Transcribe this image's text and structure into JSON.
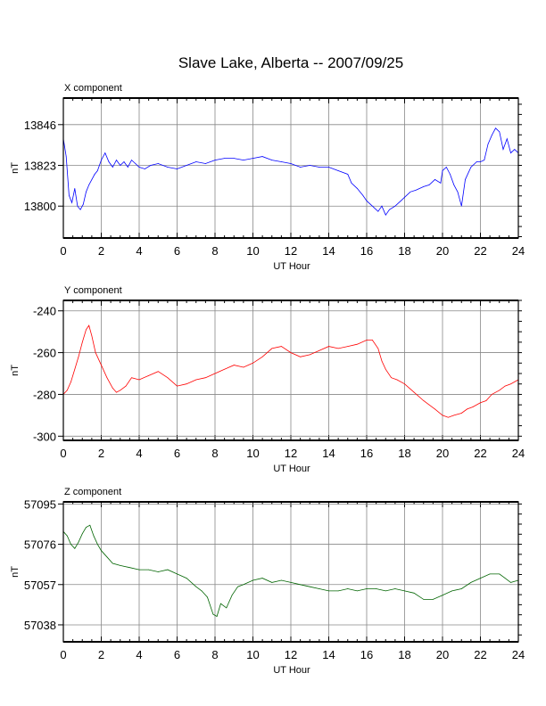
{
  "title": "Slave Lake, Alberta -- 2007/09/25",
  "chart_data": [
    {
      "type": "line",
      "title": "X component",
      "xlabel": "UT Hour",
      "ylabel": "nT",
      "xlim": [
        0,
        24
      ],
      "ylim": [
        13782,
        13861
      ],
      "xticks": [
        "0",
        "2",
        "4",
        "6",
        "8",
        "10",
        "12",
        "14",
        "16",
        "18",
        "20",
        "22",
        "24"
      ],
      "yticks": [
        "13800",
        "13823",
        "13846"
      ],
      "grid": true,
      "series": [
        {
          "color": "#0000ff",
          "x": [
            0,
            0.15,
            0.3,
            0.45,
            0.6,
            0.75,
            0.9,
            1.05,
            1.2,
            1.35,
            1.5,
            1.65,
            1.8,
            2,
            2.2,
            2.4,
            2.6,
            2.8,
            3,
            3.2,
            3.4,
            3.6,
            3.8,
            4,
            4.3,
            4.6,
            5,
            5.5,
            6,
            6.5,
            7,
            7.5,
            8,
            8.5,
            9,
            9.5,
            10,
            10.5,
            11,
            11.5,
            12,
            12.5,
            13,
            13.5,
            14,
            14.5,
            15,
            15.2,
            15.5,
            15.8,
            16,
            16.3,
            16.6,
            16.8,
            17,
            17.2,
            17.5,
            17.8,
            18,
            18.3,
            18.6,
            19,
            19.3,
            19.6,
            19.9,
            20,
            20.2,
            20.4,
            20.6,
            20.8,
            21,
            21.2,
            21.5,
            21.8,
            22,
            22.2,
            22.4,
            22.6,
            22.8,
            23,
            23.2,
            23.4,
            23.6,
            23.8,
            24
          ],
          "y": [
            13838,
            13828,
            13806,
            13802,
            13810,
            13800,
            13798,
            13801,
            13808,
            13812,
            13815,
            13818,
            13820,
            13826,
            13830,
            13825,
            13822,
            13826,
            13823,
            13825,
            13822,
            13826,
            13824,
            13822,
            13821,
            13823,
            13824,
            13822,
            13821,
            13823,
            13825,
            13824,
            13826,
            13827,
            13827,
            13826,
            13827,
            13828,
            13826,
            13825,
            13824,
            13822,
            13823,
            13822,
            13822,
            13820,
            13818,
            13813,
            13810,
            13806,
            13803,
            13800,
            13797,
            13800,
            13795,
            13798,
            13800,
            13803,
            13805,
            13808,
            13809,
            13811,
            13812,
            13815,
            13813,
            13820,
            13822,
            13818,
            13812,
            13808,
            13800,
            13815,
            13822,
            13825,
            13825,
            13826,
            13835,
            13840,
            13844,
            13842,
            13832,
            13838,
            13830,
            13832,
            13830
          ]
        }
      ]
    },
    {
      "type": "line",
      "title": "Y component",
      "xlabel": "UT Hour",
      "ylabel": "nT",
      "xlim": [
        0,
        24
      ],
      "ylim": [
        -302,
        -235
      ],
      "xticks": [
        "0",
        "2",
        "4",
        "6",
        "8",
        "10",
        "12",
        "14",
        "16",
        "18",
        "20",
        "22",
        "24"
      ],
      "yticks": [
        "-240",
        "-260",
        "-280",
        "-300"
      ],
      "grid": true,
      "series": [
        {
          "color": "#ff0000",
          "x": [
            0,
            0.2,
            0.4,
            0.6,
            0.8,
            1,
            1.2,
            1.35,
            1.5,
            1.7,
            2,
            2.3,
            2.6,
            2.8,
            3,
            3.3,
            3.6,
            4,
            4.5,
            5,
            5.5,
            6,
            6.5,
            7,
            7.5,
            8,
            8.5,
            9,
            9.5,
            10,
            10.5,
            11,
            11.5,
            12,
            12.5,
            13,
            13.5,
            14,
            14.5,
            15,
            15.5,
            16,
            16.3,
            16.6,
            16.8,
            17,
            17.3,
            17.6,
            18,
            18.5,
            19,
            19.3,
            19.6,
            20,
            20.3,
            20.6,
            21,
            21.3,
            21.6,
            22,
            22.3,
            22.6,
            23,
            23.3,
            23.6,
            24
          ],
          "y": [
            -280,
            -278,
            -274,
            -268,
            -262,
            -255,
            -249,
            -247,
            -252,
            -260,
            -266,
            -272,
            -277,
            -279,
            -278,
            -276,
            -272,
            -273,
            -271,
            -269,
            -272,
            -276,
            -275,
            -273,
            -272,
            -270,
            -268,
            -266,
            -267,
            -265,
            -262,
            -258,
            -257,
            -260,
            -262,
            -261,
            -259,
            -257,
            -258,
            -257,
            -256,
            -254,
            -254,
            -258,
            -264,
            -268,
            -272,
            -273,
            -275,
            -279,
            -283,
            -285,
            -287,
            -290,
            -291,
            -290,
            -289,
            -287,
            -286,
            -284,
            -283,
            -280,
            -278,
            -276,
            -275,
            -273
          ]
        }
      ]
    },
    {
      "type": "line",
      "title": "Z component",
      "xlabel": "UT Hour",
      "ylabel": "nT",
      "xlim": [
        0,
        24
      ],
      "ylim": [
        57030,
        57096
      ],
      "xticks": [
        "0",
        "2",
        "4",
        "6",
        "8",
        "10",
        "12",
        "14",
        "16",
        "18",
        "20",
        "22",
        "24"
      ],
      "yticks": [
        "57038",
        "57057",
        "57076",
        "57095"
      ],
      "grid": true,
      "series": [
        {
          "color": "#006400",
          "x": [
            0,
            0.2,
            0.4,
            0.6,
            0.8,
            1,
            1.2,
            1.4,
            1.6,
            1.8,
            2,
            2.3,
            2.6,
            3,
            3.5,
            4,
            4.5,
            5,
            5.5,
            6,
            6.5,
            7,
            7.3,
            7.6,
            7.9,
            8.1,
            8.3,
            8.6,
            8.9,
            9.2,
            9.5,
            10,
            10.5,
            11,
            11.5,
            12,
            12.5,
            13,
            13.5,
            14,
            14.5,
            15,
            15.5,
            16,
            16.5,
            17,
            17.5,
            18,
            18.5,
            19,
            19.5,
            20,
            20.5,
            21,
            21.5,
            22,
            22.5,
            23,
            23.3,
            23.6,
            24
          ],
          "y": [
            57082,
            57080,
            57076,
            57074,
            57077,
            57081,
            57084,
            57085,
            57080,
            57076,
            57073,
            57070,
            57067,
            57066,
            57065,
            57064,
            57064,
            57063,
            57064,
            57062,
            57060,
            57056,
            57054,
            57051,
            57043,
            57042,
            57048,
            57046,
            57052,
            57056,
            57057,
            57059,
            57060,
            57058,
            57059,
            57058,
            57057,
            57056,
            57055,
            57054,
            57054,
            57055,
            57054,
            57055,
            57055,
            57054,
            57055,
            57054,
            57053,
            57050,
            57050,
            57052,
            57054,
            57055,
            57058,
            57060,
            57062,
            57062,
            57060,
            57058,
            57059
          ]
        }
      ]
    }
  ]
}
